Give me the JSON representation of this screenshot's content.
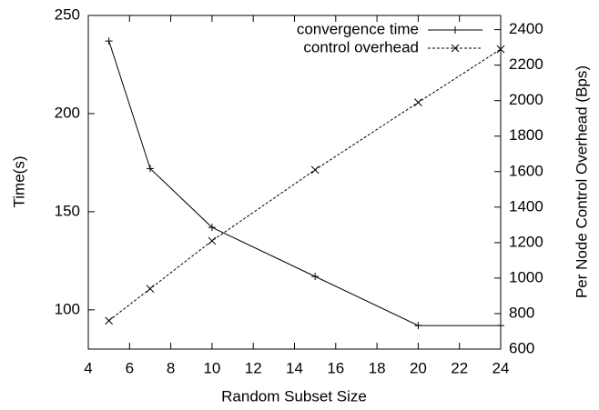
{
  "chart_data": {
    "type": "line",
    "xlabel": "Random Subset Size",
    "ylabel": "Time(s)",
    "y2label": "Per Node Control Overhead (Bps)",
    "xlim": [
      4,
      24
    ],
    "xticks": [
      4,
      6,
      8,
      10,
      12,
      14,
      16,
      18,
      20,
      22,
      24
    ],
    "ylim": [
      80,
      250
    ],
    "yticks": [
      100,
      150,
      200,
      250
    ],
    "y2lim": [
      600,
      2480
    ],
    "y2ticks": [
      600,
      800,
      1000,
      1200,
      1400,
      1600,
      1800,
      2000,
      2200,
      2400
    ],
    "legend": "upper right",
    "series": [
      {
        "name": "convergence time",
        "color": "#000000",
        "marker": "plus",
        "dashed": false,
        "x": [
          5,
          7,
          10,
          15,
          20,
          24
        ],
        "values": [
          237,
          172,
          142,
          117,
          92,
          92
        ]
      },
      {
        "name": "control overhead",
        "color": "#000000",
        "marker": "cross",
        "dashed": true,
        "axis": "y2",
        "x": [
          5,
          7,
          10,
          15,
          20,
          24
        ],
        "values": [
          760,
          940,
          1210,
          1610,
          1990,
          2290
        ]
      }
    ]
  }
}
